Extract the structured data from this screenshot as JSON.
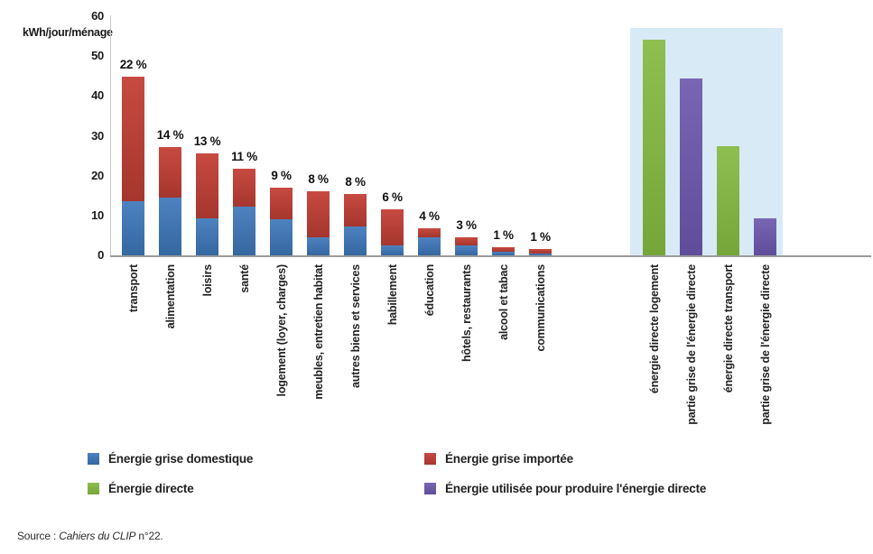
{
  "chart_data": {
    "type": "bar",
    "unit_label": "kWh/jour/ménage",
    "ylim": [
      0,
      60
    ],
    "yticks": [
      0,
      10,
      20,
      30,
      40,
      50,
      60
    ],
    "grid": false,
    "main_group": {
      "stacked": true,
      "categories": [
        "transport",
        "alimentation",
        "loisirs",
        "santé",
        "logement (loyer, charges)",
        "meubles, entretien habitat",
        "autres biens et services",
        "habillement",
        "éducation",
        "hôtels, restaurants",
        "alcool et tabac",
        "communications"
      ],
      "bar_labels": [
        "22 %",
        "14 %",
        "13 %",
        "11 %",
        "9 %",
        "8 %",
        "8 %",
        "6 %",
        "4 %",
        "3 %",
        "1 %",
        "1 %"
      ],
      "series": [
        {
          "name": "Énergie grise domestique",
          "color": "#4e82c0",
          "color_dark": "#3567a0",
          "values": [
            13.5,
            14.6,
            9.2,
            12.2,
            9.0,
            4.5,
            7.2,
            2.4,
            4.5,
            2.5,
            0.8,
            0.4
          ]
        },
        {
          "name": "Énergie grise importée",
          "color": "#c74a41",
          "color_dark": "#a5362e",
          "values": [
            31.3,
            12.6,
            16.3,
            9.5,
            8.0,
            11.5,
            8.2,
            9.2,
            2.3,
            2.1,
            1.2,
            1.2
          ]
        }
      ]
    },
    "direct_group": {
      "highlight_background": "#d8eaf6",
      "categories": [
        "énergie directe logement",
        "partie grise de l'énergie directe",
        "énergie directe transport",
        "partie grise de l'énergie directe"
      ],
      "values": [
        54.1,
        44.4,
        27.4,
        9.3
      ],
      "bar_series": [
        "Énergie directe",
        "Énergie utilisée pour produire l'énergie directe",
        "Énergie directe",
        "Énergie utilisée pour produire l'énergie directe"
      ],
      "bar_colors": [
        {
          "color": "#8fbe51",
          "color_dark": "#76a53a"
        },
        {
          "color": "#7866b2",
          "color_dark": "#5f4d99"
        },
        {
          "color": "#8fbe51",
          "color_dark": "#76a53a"
        },
        {
          "color": "#7866b2",
          "color_dark": "#5f4d99"
        }
      ]
    },
    "legend": [
      {
        "label": "Énergie grise domestique",
        "color": "#4e82c0",
        "color_dark": "#3567a0"
      },
      {
        "label": "Énergie grise importée",
        "color": "#c74a41",
        "color_dark": "#a5362e"
      },
      {
        "label": "Énergie directe",
        "color": "#8fbe51",
        "color_dark": "#76a53a"
      },
      {
        "label": "Énergie utilisée pour produire l'énergie directe",
        "color": "#7866b2",
        "color_dark": "#5f4d99"
      }
    ],
    "legend_position": "bottom"
  },
  "source": {
    "prefix": "Source : ",
    "italic": "Cahiers du CLIP",
    "suffix": " n°22."
  }
}
